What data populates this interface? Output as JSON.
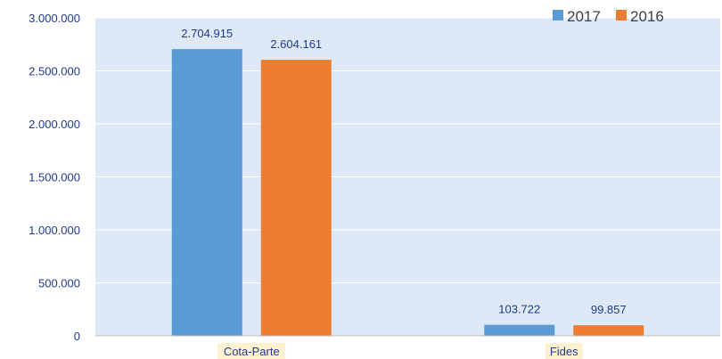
{
  "chart_data": {
    "type": "bar",
    "categories": [
      "Cota-Parte",
      "Fides"
    ],
    "series": [
      {
        "name": "2017",
        "color": "#5b9bd5",
        "values": [
          2704915,
          103722
        ],
        "labels": [
          "2.704.915",
          "103.722"
        ]
      },
      {
        "name": "2016",
        "color": "#ed7d31",
        "values": [
          2604161,
          99857
        ],
        "labels": [
          "2.604.161",
          "99.857"
        ]
      }
    ],
    "yticks": [
      {
        "value": 0,
        "label": "0"
      },
      {
        "value": 500000,
        "label": "500.000"
      },
      {
        "value": 1000000,
        "label": "1.000.000"
      },
      {
        "value": 1500000,
        "label": "1.500.000"
      },
      {
        "value": 2000000,
        "label": "2.000.000"
      },
      {
        "value": 2500000,
        "label": "2.500.000"
      },
      {
        "value": 3000000,
        "label": "3.000.000"
      }
    ],
    "ylim": [
      0,
      3000000
    ],
    "grid": true,
    "legend_position": "top-right",
    "plot_background": "#dde9f6",
    "category_label_background": "#fdf2d0"
  }
}
